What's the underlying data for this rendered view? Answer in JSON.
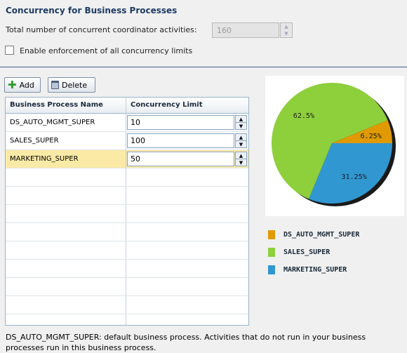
{
  "header": {
    "title": "Concurrency for Business Processes",
    "concurrent_label": "Total number of concurrent coordinator activities:",
    "concurrent_value": "160",
    "enforce_label": "Enable enforcement of all concurrency limits"
  },
  "toolbar": {
    "add_label": "Add",
    "delete_label": "Delete"
  },
  "grid": {
    "columns": [
      "Business Process Name",
      "Concurrency Limit"
    ],
    "rows": [
      {
        "name": "DS_AUTO_MGMT_SUPER",
        "limit": "10"
      },
      {
        "name": "SALES_SUPER",
        "limit": "100"
      },
      {
        "name": "MARKETING_SUPER",
        "limit": "50"
      }
    ]
  },
  "chart_data": {
    "type": "pie",
    "categories": [
      "DS_AUTO_MGMT_SUPER",
      "SALES_SUPER",
      "MARKETING_SUPER"
    ],
    "values": [
      6.25,
      62.5,
      31.25
    ],
    "labels": [
      "6.25%",
      "62.5%",
      "31.25%"
    ],
    "colors": [
      "#e09a00",
      "#8ecf3c",
      "#3197d1"
    ],
    "legend": "bottom"
  },
  "footer": {
    "note": "DS_AUTO_MGMT_SUPER: default business process. Activities that do not run in your business processes run in this business process."
  }
}
